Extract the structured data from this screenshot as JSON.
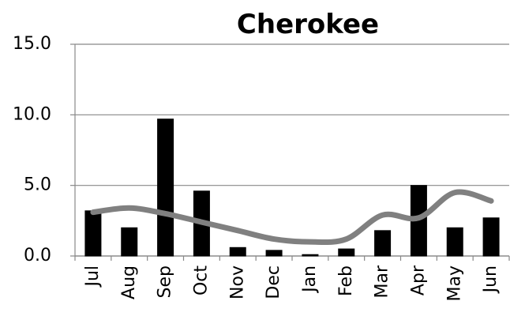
{
  "chart_data": {
    "type": "bar",
    "title": "Cherokee",
    "categories": [
      "Jul",
      "Aug",
      "Sep",
      "Oct",
      "Nov",
      "Dec",
      "Jan",
      "Feb",
      "Mar",
      "Apr",
      "May",
      "Jun"
    ],
    "series": [
      {
        "type": "bar",
        "color": "#000000",
        "values": [
          3.2,
          2.0,
          9.7,
          4.6,
          0.6,
          0.4,
          0.1,
          0.5,
          1.8,
          5.0,
          2.0,
          2.7
        ]
      },
      {
        "type": "line",
        "color": "#808080",
        "values": [
          3.1,
          3.4,
          3.0,
          2.4,
          1.8,
          1.2,
          1.0,
          1.2,
          2.9,
          2.7,
          4.5,
          3.9
        ]
      }
    ],
    "ylim": [
      0,
      15
    ],
    "yticks": [
      {
        "value": 0,
        "label": "0.0"
      },
      {
        "value": 5,
        "label": "5.0"
      },
      {
        "value": 10,
        "label": "10.0"
      },
      {
        "value": 15,
        "label": "15.0"
      }
    ],
    "grid": true
  }
}
